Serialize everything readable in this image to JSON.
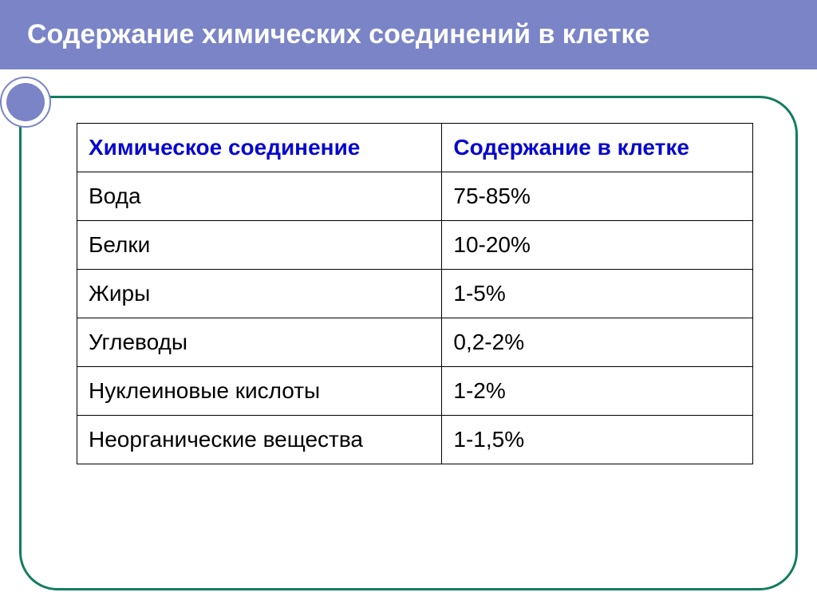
{
  "slide": {
    "title": "Содержание химических соединений в клетке",
    "title_bg": "#7a84c7",
    "title_color": "#ffffff",
    "title_fontsize": 34,
    "bullet_outer_color": "#7a84c7",
    "bullet_inner_color": "#7a84c7",
    "frame_border_color": "#127c5f",
    "frame_border_width": 3,
    "background_color": "#ffffff"
  },
  "table": {
    "type": "table",
    "header_color": "#0707cf",
    "cell_color": "#000000",
    "border_color": "#000000",
    "fontsize": 28,
    "columns": [
      {
        "label": "Химическое соединение",
        "width_pct": 54
      },
      {
        "label": "Содержание в клетке",
        "width_pct": 46
      }
    ],
    "rows": [
      [
        "Вода",
        "75-85%"
      ],
      [
        "Белки",
        "10-20%"
      ],
      [
        "Жиры",
        "1-5%"
      ],
      [
        "Углеводы",
        "0,2-2%"
      ],
      [
        "Нуклеиновые кислоты",
        "1-2%"
      ],
      [
        "Неорганические вещества",
        "1-1,5%"
      ]
    ]
  }
}
